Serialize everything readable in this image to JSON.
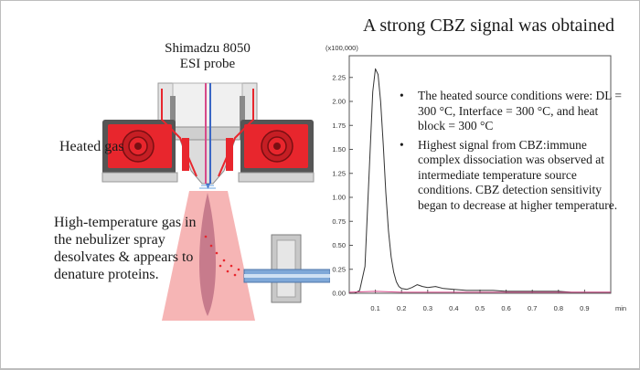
{
  "slide": {
    "title": "A strong CBZ signal was obtained",
    "probe_label_line1": "Shimadzu 8050",
    "probe_label_line2": "ESI probe",
    "heated_gas_label": "Heated gas",
    "description": "High-temperature gas in the nebulizer spray desolvates & appears to denature proteins.",
    "bullets": [
      "The heated source conditions were: DL = 300 °C, Interface = 300 °C, and heat block = 300 °C",
      "Highest signal from CBZ:immune complex dissociation was observed at intermediate temperature source conditions. CBZ detection sensitivity began to decrease at higher temperature."
    ],
    "bullet_symbol": "•"
  },
  "colors": {
    "heater_red": "#e8262d",
    "plume_pink": "#f4a8a8",
    "trace_black": "#333333",
    "trace_pink": "#d64a8a"
  },
  "chart_data": {
    "type": "line",
    "y_scale_label": "(x100,000)",
    "xlabel": "min",
    "xlim": [
      0,
      1.0
    ],
    "ylim": [
      0,
      2.4
    ],
    "x_ticks": [
      "0.1",
      "0.2",
      "0.3",
      "0.4",
      "0.5",
      "0.6",
      "0.7",
      "0.8",
      "0.9"
    ],
    "y_ticks": [
      "0.00",
      "0.25",
      "0.50",
      "0.75",
      "1.00",
      "1.25",
      "1.50",
      "1.75",
      "2.00",
      "2.25"
    ],
    "series": [
      {
        "color": "#333333",
        "x": [
          0.0,
          0.02,
          0.04,
          0.06,
          0.08,
          0.09,
          0.1,
          0.11,
          0.12,
          0.13,
          0.14,
          0.15,
          0.16,
          0.17,
          0.18,
          0.19,
          0.2,
          0.22,
          0.24,
          0.26,
          0.28,
          0.3,
          0.33,
          0.36,
          0.4,
          0.45,
          0.5,
          0.55,
          0.6,
          0.65,
          0.7,
          0.75,
          0.8,
          0.85,
          0.9,
          0.95,
          1.0
        ],
        "y": [
          0.0,
          0.0,
          0.03,
          0.28,
          1.5,
          2.1,
          2.34,
          2.28,
          2.0,
          1.55,
          1.05,
          0.65,
          0.38,
          0.22,
          0.12,
          0.07,
          0.05,
          0.04,
          0.06,
          0.09,
          0.07,
          0.06,
          0.07,
          0.05,
          0.04,
          0.03,
          0.03,
          0.03,
          0.02,
          0.02,
          0.02,
          0.02,
          0.02,
          0.01,
          0.01,
          0.01,
          0.01
        ]
      },
      {
        "color": "#d64a8a",
        "x": [
          0.0,
          0.1,
          0.2,
          0.3,
          0.4,
          0.5,
          0.6,
          0.7,
          0.8,
          0.9,
          1.0
        ],
        "y": [
          0.01,
          0.02,
          0.01,
          0.01,
          0.01,
          0.01,
          0.01,
          0.01,
          0.01,
          0.01,
          0.01
        ]
      }
    ]
  }
}
